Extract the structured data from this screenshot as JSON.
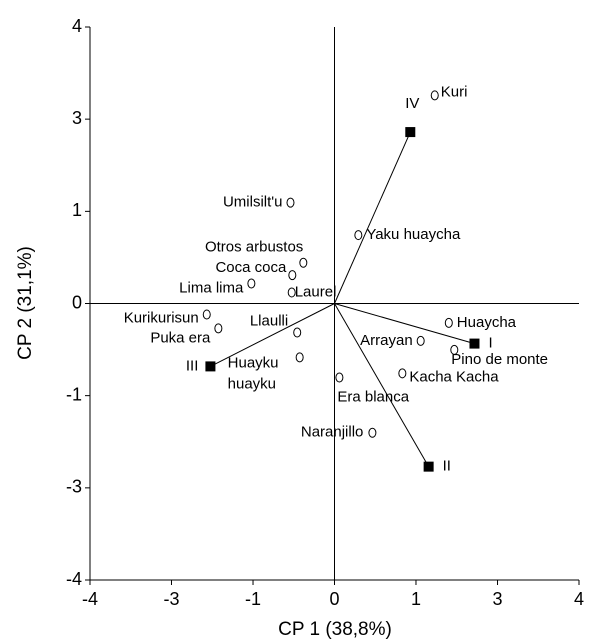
{
  "chart_data": {
    "type": "biplot",
    "xlabel": "CP 1 (38,8%)",
    "ylabel": "CP 2 (31,1%)",
    "xlim": [
      -4,
      4
    ],
    "ylim": [
      -4,
      4
    ],
    "xticks": [
      -4,
      {
        "value": -2.667,
        "label": "-3"
      },
      {
        "value": -1.333,
        "label": "-1"
      },
      0,
      {
        "value": 1.333,
        "label": "1"
      },
      {
        "value": 2.667,
        "label": "3"
      },
      4
    ],
    "yticks": [
      -4,
      {
        "value": -2.667,
        "label": "-3"
      },
      {
        "value": -1.333,
        "label": "-1"
      },
      0,
      {
        "value": 1.333,
        "label": "1"
      },
      {
        "value": 2.667,
        "label": "3"
      },
      4
    ],
    "points": {
      "labels": [
        "Kuri",
        "Yaku huaycha",
        "Umilsilt'u",
        "Otros arbustos",
        "Coca coca",
        "Lima lima",
        "Laurel",
        "Kurikurisun",
        "Puka era",
        "Llaulli",
        "Huayku huayku",
        "Huaycha",
        "Arrayan",
        "Pino de monte",
        "Kacha Kacha",
        "Era blanca",
        "Naranjillo"
      ],
      "x": [
        1.64,
        0.39,
        -0.72,
        -0.51,
        -0.69,
        -1.36,
        -0.7,
        -2.09,
        -1.9,
        -0.61,
        -0.57,
        1.87,
        1.41,
        1.96,
        1.11,
        0.08,
        0.62
      ],
      "y": [
        3.01,
        0.99,
        1.46,
        0.59,
        0.41,
        0.29,
        0.16,
        -0.16,
        -0.36,
        -0.42,
        -0.78,
        -0.28,
        -0.54,
        -0.67,
        -1.01,
        -1.07,
        -1.87
      ]
    },
    "vectors": {
      "labels": [
        "IV",
        "I",
        "II",
        "III"
      ],
      "x": [
        1.24,
        2.29,
        1.54,
        -2.03
      ],
      "y": [
        2.48,
        -0.58,
        -2.36,
        -0.91
      ]
    }
  }
}
